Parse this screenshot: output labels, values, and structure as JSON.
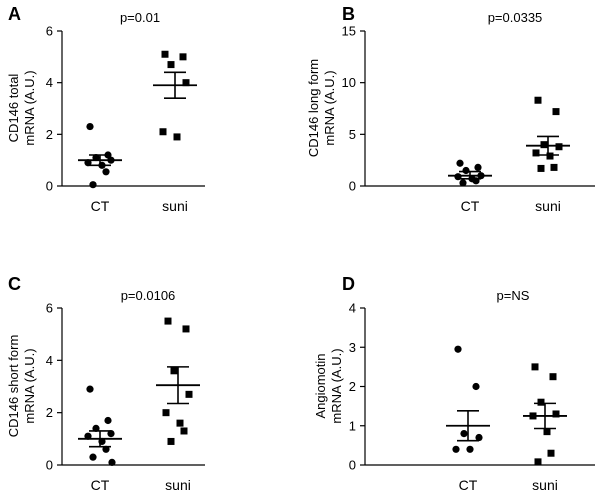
{
  "chart_data": [
    {
      "type": "scatter",
      "panel": "A",
      "annotation": "p=0.01",
      "ylabel": [
        "CD146 total",
        "mRNA (A.U.)"
      ],
      "categories": [
        "CT",
        "suni"
      ],
      "ylim": [
        0,
        6
      ],
      "yticks": [
        "0",
        "2",
        "4",
        "6"
      ],
      "series": [
        {
          "values": [
            2.3,
            1.2,
            1.1,
            1.0,
            0.9,
            0.8,
            0.55,
            0.05
          ],
          "marker": "circle",
          "mean": 1.0,
          "sem": [
            0.8,
            1.2
          ]
        },
        {
          "values": [
            5.1,
            5.0,
            4.7,
            4.0,
            2.1,
            1.9
          ],
          "marker": "square",
          "mean": 3.9,
          "sem": [
            3.4,
            4.4
          ]
        }
      ]
    },
    {
      "type": "scatter",
      "panel": "B",
      "annotation": "p=0.0335",
      "ylabel": [
        "CD146 long form",
        "mRNA (A.U.)"
      ],
      "categories": [
        "CT",
        "suni"
      ],
      "ylim": [
        0,
        15
      ],
      "yticks": [
        "0",
        "5",
        "10",
        "15"
      ],
      "series": [
        {
          "values": [
            2.2,
            1.8,
            1.5,
            1.0,
            0.9,
            0.7,
            0.5,
            0.3
          ],
          "marker": "circle",
          "mean": 1.0,
          "sem": [
            0.7,
            1.4
          ]
        },
        {
          "values": [
            8.3,
            7.2,
            4.0,
            3.8,
            3.2,
            2.9,
            1.8,
            1.7
          ],
          "marker": "square",
          "mean": 3.9,
          "sem": [
            3.0,
            4.8
          ]
        }
      ]
    },
    {
      "type": "scatter",
      "panel": "C",
      "annotation": "p=0.0106",
      "ylabel": [
        "CD146 short form",
        "mRNA (A.U.)"
      ],
      "categories": [
        "CT",
        "suni"
      ],
      "ylim": [
        0,
        6
      ],
      "yticks": [
        "0",
        "2",
        "4",
        "6"
      ],
      "series": [
        {
          "values": [
            2.9,
            1.7,
            1.4,
            1.2,
            1.1,
            0.9,
            0.6,
            0.3,
            0.1
          ],
          "marker": "circle",
          "mean": 1.0,
          "sem": [
            0.7,
            1.3
          ]
        },
        {
          "values": [
            5.5,
            5.2,
            3.6,
            2.7,
            2.0,
            1.6,
            1.3,
            0.9
          ],
          "marker": "square",
          "mean": 3.05,
          "sem": [
            2.35,
            3.75
          ]
        }
      ]
    },
    {
      "type": "scatter",
      "panel": "D",
      "annotation": "p=NS",
      "ylabel": [
        "Angiomotin",
        "mRNA (A.U.)"
      ],
      "categories": [
        "CT",
        "suni"
      ],
      "ylim": [
        0,
        4
      ],
      "yticks": [
        "0",
        "1",
        "2",
        "3",
        "4"
      ],
      "series": [
        {
          "values": [
            2.95,
            2.0,
            0.8,
            0.7,
            0.4,
            0.4
          ],
          "marker": "circle",
          "mean": 1.0,
          "sem": [
            0.62,
            1.38
          ]
        },
        {
          "values": [
            2.5,
            2.25,
            1.6,
            1.3,
            1.25,
            0.85,
            0.3,
            0.08
          ],
          "marker": "square",
          "mean": 1.25,
          "sem": [
            0.93,
            1.57
          ]
        }
      ]
    }
  ]
}
